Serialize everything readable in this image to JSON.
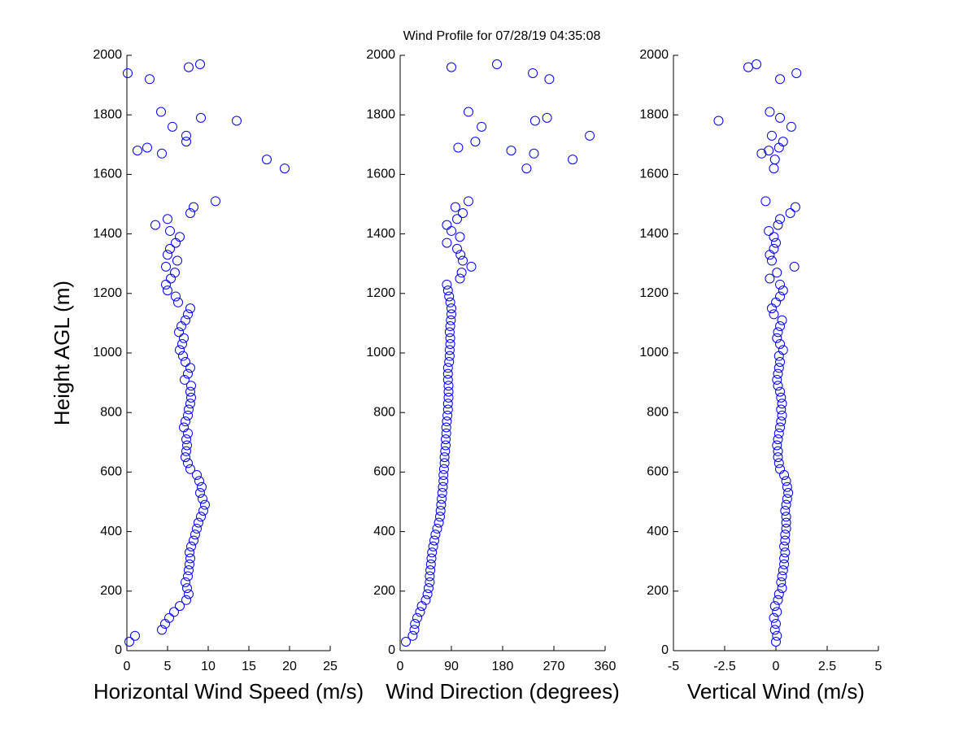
{
  "chart_data": [
    {
      "type": "scatter",
      "title": "Wind Profile for  07/28/19 04:35:08",
      "x_label": "Horizontal Wind Speed (m/s)",
      "y_label": "Height AGL (m)",
      "color": "#0000ff",
      "xlim": [
        0,
        25
      ],
      "xticks": [
        0,
        5,
        10,
        15,
        20,
        25
      ],
      "ylim": [
        0,
        2000
      ],
      "yticks": [
        0,
        200,
        400,
        600,
        800,
        1000,
        1200,
        1400,
        1600,
        1800,
        2000
      ],
      "x": [
        0.3,
        1,
        4.3,
        4.7,
        5.2,
        5.8,
        6.5,
        7.3,
        7.6,
        7.4,
        7.2,
        7.5,
        7.6,
        7.7,
        7.8,
        7.7,
        7.9,
        8.2,
        8.4,
        8.6,
        8.8,
        9.1,
        9.4,
        9.6,
        9.3,
        9.0,
        9.2,
        8.9,
        8.6,
        7.8,
        7.5,
        7.2,
        7.3,
        7.4,
        7.3,
        7.5,
        7.0,
        7.2,
        7.5,
        7.6,
        7.8,
        7.9,
        7.8,
        7.9,
        7.1,
        7.5,
        7.8,
        7.2,
        6.9,
        6.5,
        6.8,
        7.0,
        6.4,
        6.7,
        7.2,
        7.5,
        7.8,
        6.3,
        6.0,
        5.0,
        4.8,
        5.4,
        5.9,
        4.8,
        6.2,
        5.0,
        5.3,
        6.0,
        6.5,
        5.3,
        3.5,
        5.0,
        7.8,
        8.2,
        10.9,
        19.4,
        17.2,
        4.3,
        1.3,
        2.5,
        7.3,
        7.3,
        5.6,
        13.5,
        9.1,
        4.2,
        2.8,
        0.1,
        7.6,
        9.0
      ],
      "y": [
        30,
        50,
        70,
        90,
        110,
        130,
        150,
        170,
        190,
        210,
        230,
        250,
        270,
        290,
        310,
        330,
        350,
        370,
        390,
        410,
        430,
        450,
        470,
        490,
        510,
        530,
        550,
        570,
        590,
        610,
        630,
        650,
        670,
        690,
        710,
        730,
        750,
        770,
        790,
        810,
        830,
        850,
        870,
        890,
        910,
        930,
        950,
        970,
        990,
        1010,
        1030,
        1050,
        1070,
        1090,
        1110,
        1130,
        1150,
        1170,
        1190,
        1210,
        1230,
        1250,
        1270,
        1290,
        1310,
        1330,
        1350,
        1370,
        1390,
        1410,
        1430,
        1450,
        1470,
        1490,
        1510,
        1620,
        1650,
        1670,
        1680,
        1690,
        1710,
        1730,
        1760,
        1780,
        1790,
        1810,
        1920,
        1940,
        1960,
        1970
      ]
    },
    {
      "type": "scatter",
      "x_label": "Wind Direction (degrees)",
      "color": "#0000ff",
      "xlim": [
        0,
        360
      ],
      "xticks": [
        0,
        90,
        180,
        270,
        360
      ],
      "ylim": [
        0,
        2000
      ],
      "yticks": [
        0,
        200,
        400,
        600,
        800,
        1000,
        1200,
        1400,
        1600,
        1800,
        2000
      ],
      "x": [
        10,
        22,
        25,
        26,
        30,
        35,
        38,
        45,
        48,
        50,
        52,
        52,
        53,
        54,
        55,
        56,
        58,
        60,
        62,
        65,
        68,
        70,
        71,
        72,
        73,
        74,
        75,
        76,
        76,
        77,
        78,
        78,
        79,
        80,
        80,
        81,
        81,
        82,
        83,
        84,
        84,
        85,
        85,
        85,
        84,
        84,
        84,
        86,
        87,
        87,
        88,
        88,
        87,
        88,
        89,
        90,
        90,
        88,
        86,
        84,
        82,
        105,
        108,
        125,
        110,
        106,
        100,
        82,
        105,
        90,
        82,
        100,
        110,
        97,
        120,
        222,
        303,
        235,
        195,
        102,
        132,
        333,
        143,
        237,
        258,
        120,
        262,
        233,
        90,
        170
      ],
      "y": [
        30,
        50,
        70,
        90,
        110,
        130,
        150,
        170,
        190,
        210,
        230,
        250,
        270,
        290,
        310,
        330,
        350,
        370,
        390,
        410,
        430,
        450,
        470,
        490,
        510,
        530,
        550,
        570,
        590,
        610,
        630,
        650,
        670,
        690,
        710,
        730,
        750,
        770,
        790,
        810,
        830,
        850,
        870,
        890,
        910,
        930,
        950,
        970,
        990,
        1010,
        1030,
        1050,
        1070,
        1090,
        1110,
        1130,
        1150,
        1170,
        1190,
        1210,
        1230,
        1250,
        1270,
        1290,
        1310,
        1330,
        1350,
        1370,
        1390,
        1410,
        1430,
        1450,
        1470,
        1490,
        1510,
        1620,
        1650,
        1670,
        1680,
        1690,
        1710,
        1730,
        1760,
        1780,
        1790,
        1810,
        1920,
        1940,
        1960,
        1970
      ]
    },
    {
      "type": "scatter",
      "x_label": "Vertical Wind (m/s)",
      "color": "#0000ff",
      "xlim": [
        -5,
        5
      ],
      "xticks": [
        -5,
        -2.5,
        0,
        2.5,
        5
      ],
      "ylim": [
        0,
        2000
      ],
      "yticks": [
        0,
        200,
        400,
        600,
        800,
        1000,
        1200,
        1400,
        1600,
        1800,
        2000
      ],
      "x": [
        0,
        0.05,
        -0.05,
        0,
        -0.1,
        0.05,
        -0.05,
        0.1,
        0.15,
        0.3,
        0.25,
        0.3,
        0.35,
        0.4,
        0.4,
        0.45,
        0.4,
        0.45,
        0.45,
        0.5,
        0.5,
        0.5,
        0.45,
        0.5,
        0.55,
        0.6,
        0.55,
        0.5,
        0.4,
        0.2,
        0.15,
        0.1,
        0.1,
        0.05,
        0.1,
        0.15,
        0.2,
        0.25,
        0.3,
        0.25,
        0.3,
        0.25,
        0.2,
        0.1,
        0.05,
        0.1,
        0.15,
        0.2,
        0.15,
        0.35,
        0.2,
        0.05,
        0.1,
        0.2,
        0.3,
        -0.1,
        -0.2,
        0,
        0.2,
        0.35,
        0.2,
        -0.3,
        0.05,
        0.9,
        -0.2,
        -0.3,
        -0.1,
        0,
        -0.1,
        -0.35,
        0.1,
        0.2,
        0.7,
        0.95,
        -0.5,
        -0.1,
        -0.05,
        -0.7,
        -0.35,
        0.15,
        0.35,
        -0.2,
        0.75,
        -2.8,
        0.2,
        -0.3,
        0.2,
        1.0,
        -1.35,
        -0.95
      ],
      "y": [
        30,
        50,
        70,
        90,
        110,
        130,
        150,
        170,
        190,
        210,
        230,
        250,
        270,
        290,
        310,
        330,
        350,
        370,
        390,
        410,
        430,
        450,
        470,
        490,
        510,
        530,
        550,
        570,
        590,
        610,
        630,
        650,
        670,
        690,
        710,
        730,
        750,
        770,
        790,
        810,
        830,
        850,
        870,
        890,
        910,
        930,
        950,
        970,
        990,
        1010,
        1030,
        1050,
        1070,
        1090,
        1110,
        1130,
        1150,
        1170,
        1190,
        1210,
        1230,
        1250,
        1270,
        1290,
        1310,
        1330,
        1350,
        1370,
        1390,
        1410,
        1430,
        1450,
        1470,
        1490,
        1510,
        1620,
        1650,
        1670,
        1680,
        1690,
        1710,
        1730,
        1760,
        1780,
        1790,
        1810,
        1920,
        1940,
        1960,
        1970
      ]
    }
  ]
}
